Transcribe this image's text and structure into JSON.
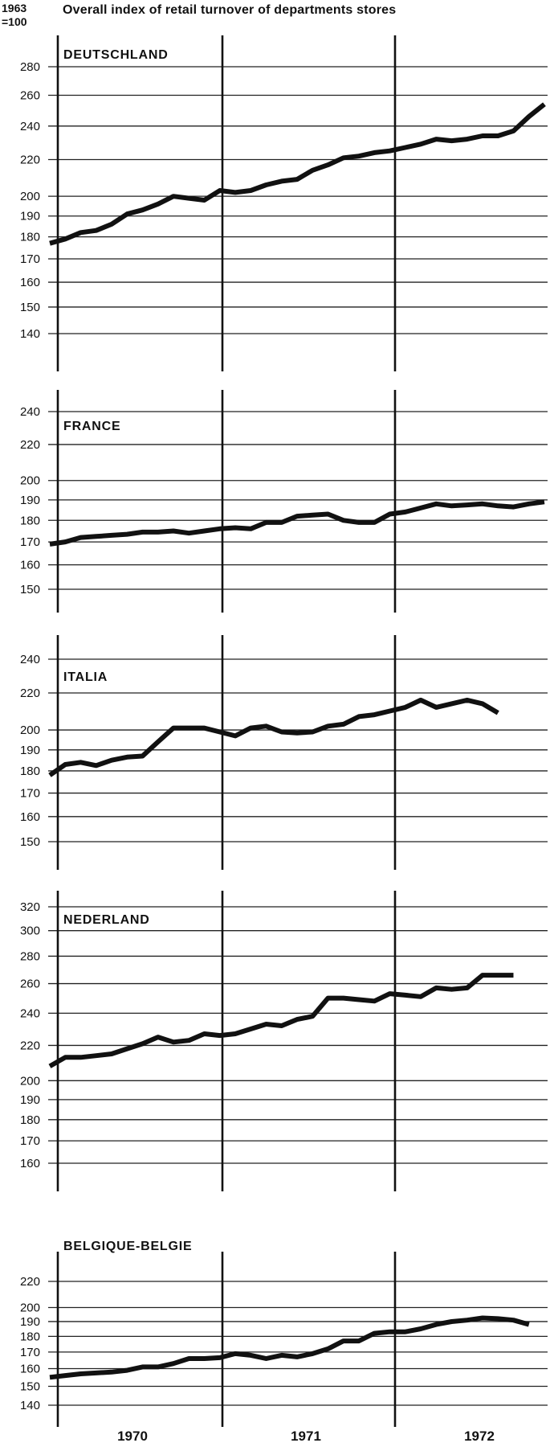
{
  "header": {
    "base_year": "1963",
    "base_value": "=100",
    "title": "Overall index of retail turnover of departments stores"
  },
  "chart_data": {
    "type": "line",
    "x_labels": [
      "1970",
      "1971",
      "1972"
    ],
    "grid": "horizontal lines at each tick value, vertical dividers at each year boundary",
    "panels": [
      {
        "country": "DEUTSCHLAND",
        "scale": "log",
        "ylim": [
          132,
          290
        ],
        "yticks": [
          140,
          150,
          160,
          170,
          180,
          190,
          200,
          220,
          240,
          260,
          280
        ],
        "values": [
          177,
          179,
          182,
          183,
          186,
          191,
          193,
          196,
          200,
          199,
          198,
          203,
          202,
          203,
          206,
          208,
          209,
          214,
          217,
          221,
          222,
          224,
          225,
          227,
          229,
          232,
          231,
          232,
          234,
          234,
          237,
          246,
          254
        ]
      },
      {
        "country": "FRANCE",
        "scale": "log",
        "ylim": [
          145,
          250
        ],
        "yticks": [
          150,
          160,
          170,
          180,
          190,
          200,
          220,
          240
        ],
        "values": [
          169,
          170,
          172,
          172.5,
          173,
          173.5,
          174.5,
          174.5,
          175,
          174,
          175,
          176,
          176.5,
          176,
          179,
          179,
          182,
          182.5,
          183,
          180,
          179,
          179,
          183,
          184,
          186,
          188,
          187,
          187.5,
          188,
          187,
          186.5,
          188,
          189
        ]
      },
      {
        "country": "ITALIA",
        "scale": "log",
        "ylim": [
          144,
          250
        ],
        "yticks": [
          150,
          160,
          170,
          180,
          190,
          200,
          220,
          240
        ],
        "values": [
          178,
          183,
          184,
          182.5,
          185,
          186.5,
          187,
          194,
          201,
          201,
          201,
          199,
          197,
          201,
          202,
          199,
          198.5,
          199,
          202,
          203,
          207,
          208,
          210,
          212,
          216,
          212,
          214,
          216,
          214,
          209
        ]
      },
      {
        "country": "NEDERLAND",
        "scale": "log",
        "ylim": [
          152,
          330
        ],
        "yticks": [
          160,
          170,
          180,
          190,
          200,
          220,
          240,
          260,
          280,
          300,
          320
        ],
        "values": [
          208,
          213,
          213,
          214,
          215,
          218,
          221,
          225,
          222,
          223,
          227,
          226,
          227,
          230,
          233,
          232,
          236,
          238,
          250,
          250,
          249,
          248,
          253,
          252,
          251,
          257,
          256,
          257,
          266,
          266,
          266
        ]
      },
      {
        "country": "BELGIQUE-BELGIE",
        "scale": "log",
        "ylim": [
          136,
          228
        ],
        "yticks": [
          140,
          150,
          160,
          170,
          180,
          190,
          200,
          220
        ],
        "values": [
          155,
          156,
          157,
          157.5,
          158,
          159,
          161,
          161,
          163,
          166,
          166,
          166.5,
          169,
          168,
          166,
          168,
          167,
          169,
          172,
          177,
          177,
          182,
          183,
          183,
          185,
          188,
          190,
          191,
          192.5,
          192,
          191,
          188
        ]
      }
    ]
  }
}
